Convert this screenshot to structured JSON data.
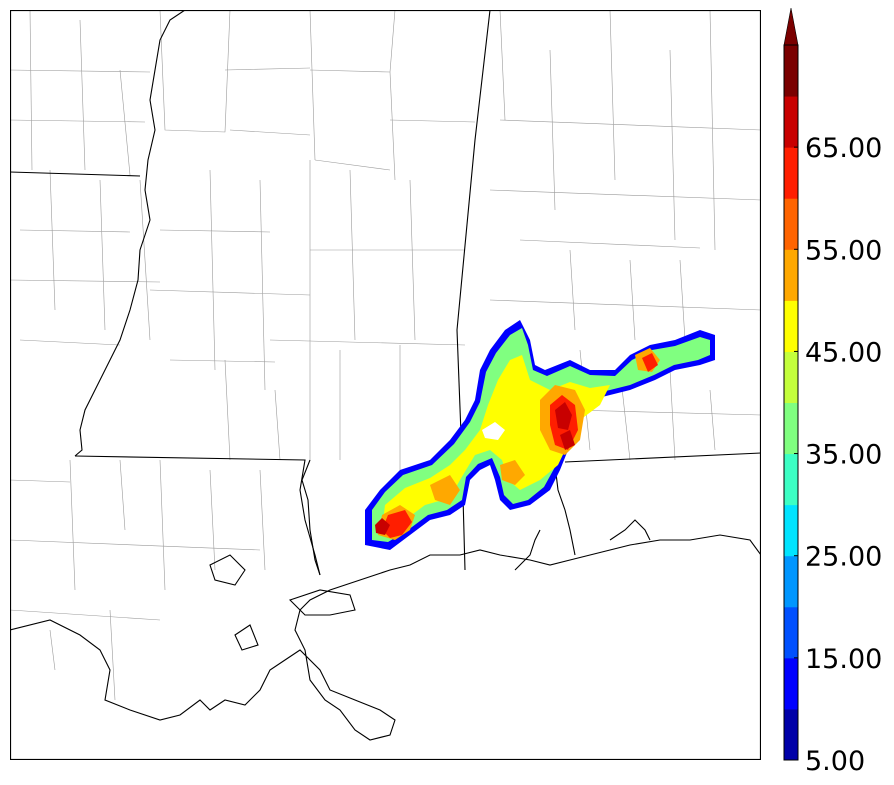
{
  "colorbar": {
    "labels": [
      "5.00",
      "15.00",
      "25.00",
      "35.00",
      "45.00",
      "55.00",
      "65.00"
    ],
    "colors": [
      "#0000a8",
      "#0000ff",
      "#0050ff",
      "#0096ff",
      "#00e4ff",
      "#3cffc4",
      "#80ff80",
      "#c4ff3c",
      "#ffff00",
      "#ffa800",
      "#ff6400",
      "#ff1e00",
      "#c80000",
      "#7a0000"
    ]
  },
  "map": {
    "land_color": "#ffffff",
    "state_line_color": "#000000",
    "county_line_color": "#9a9a9a"
  }
}
